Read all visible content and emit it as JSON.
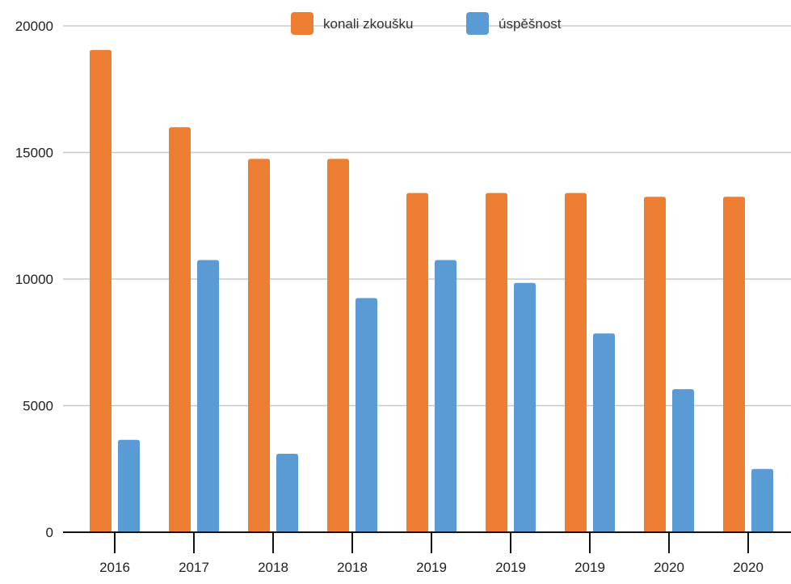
{
  "chart_data": {
    "type": "bar",
    "title": "",
    "xlabel": "",
    "ylabel": "",
    "categories": [
      "2016",
      "2017",
      "2018",
      "2018",
      "2019",
      "2019",
      "2019",
      "2020",
      "2020"
    ],
    "series": [
      {
        "name": "konali zkoušku",
        "color": "#ED7D31",
        "values": [
          19050,
          16000,
          14750,
          14750,
          13400,
          13400,
          13400,
          13250,
          13250
        ]
      },
      {
        "name": "úspěšnost",
        "color": "#5B9BD5",
        "values": [
          3650,
          10750,
          3100,
          9250,
          10750,
          9850,
          7850,
          5650,
          2500
        ]
      }
    ],
    "ylim": [
      0,
      20000
    ],
    "yticks": [
      "0",
      "5000",
      "10000",
      "15000",
      "20000"
    ],
    "grid": true,
    "legend_position": "top-center"
  }
}
